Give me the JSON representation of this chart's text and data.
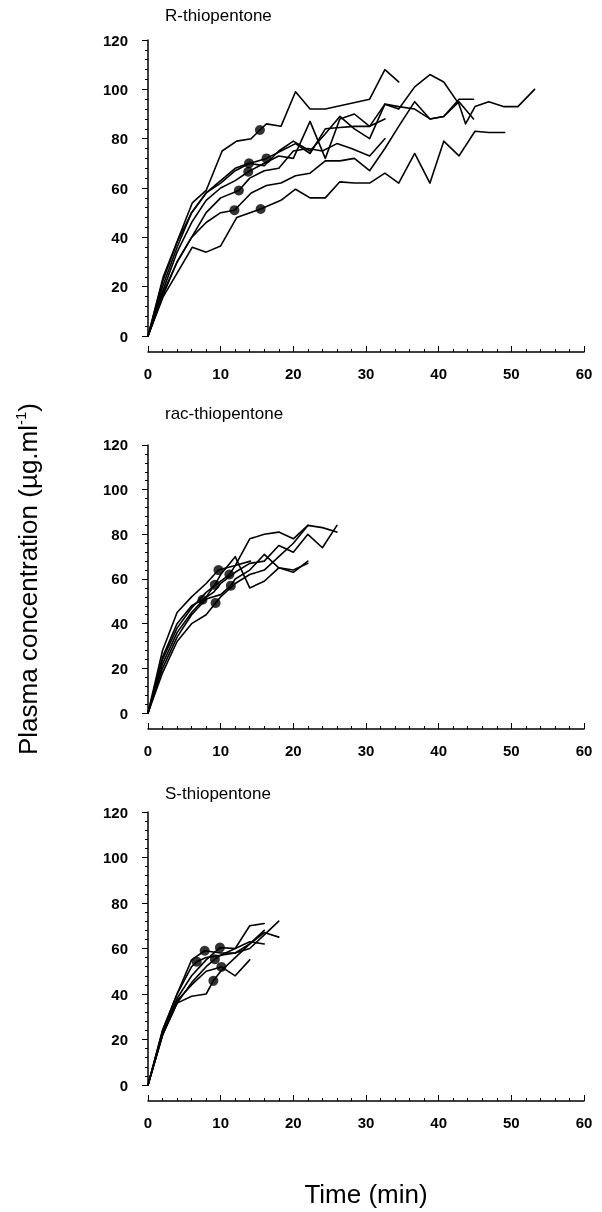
{
  "chart_data": [
    {
      "type": "line",
      "title": "R-thiopentone",
      "marker": "none",
      "xlim": [
        0,
        60
      ],
      "xticks": [
        0,
        10,
        20,
        30,
        40,
        50,
        60
      ],
      "ylim": [
        0,
        120
      ],
      "yticks": [
        0,
        20,
        40,
        60,
        80,
        100,
        120
      ],
      "series": [
        {
          "color": "#000000",
          "x": [
            0,
            2.1,
            6.1,
            8,
            10.2,
            12.2,
            14.2,
            15.4,
            16.3,
            18.3,
            20.3,
            22.3,
            24.4,
            30.5,
            32.6,
            34.5
          ],
          "values": [
            0,
            24,
            54,
            59,
            75,
            79,
            80,
            83.5,
            86,
            85,
            99,
            92,
            92,
            96,
            108,
            103
          ]
        },
        {
          "color": "#000000",
          "x": [
            0,
            2,
            4,
            6,
            8,
            10,
            12,
            13.9,
            16,
            18,
            20,
            22.3,
            24.4,
            26.4,
            28.4,
            30.5,
            32.6,
            34.5,
            36.7,
            38.8,
            40.7,
            42.8,
            43.7,
            45,
            46.9,
            48.9,
            50.9,
            53.2
          ],
          "values": [
            0,
            22,
            38,
            50,
            58,
            63,
            68,
            70,
            69,
            75,
            79,
            75,
            82,
            89,
            84,
            80,
            94,
            92,
            101,
            106,
            103,
            94,
            86,
            93,
            95,
            93,
            93,
            100
          ]
        },
        {
          "color": "#000000",
          "x": [
            0,
            2,
            4,
            6,
            8,
            10,
            12,
            13.8,
            16,
            18,
            20,
            22.3,
            24.4,
            26.4,
            28.4,
            30.5,
            32.6,
            34.5,
            36.7,
            38.8,
            40.7,
            42.8,
            44.8
          ],
          "values": [
            0,
            18,
            34,
            46,
            55,
            60,
            63,
            66.6,
            70,
            73,
            72,
            87,
            72,
            88,
            90,
            85,
            94,
            93,
            92,
            88,
            89,
            95,
            88
          ]
        },
        {
          "color": "#000000",
          "x": [
            0,
            2,
            4,
            6,
            8,
            10,
            12,
            14,
            16.3,
            18.3,
            20.3,
            22.3,
            24.4,
            26.4,
            28.4,
            30.5,
            32.6
          ],
          "values": [
            0,
            20,
            36,
            50,
            58,
            62,
            67,
            70,
            72,
            75,
            78,
            74,
            84,
            84.5,
            85,
            85,
            88
          ]
        },
        {
          "color": "#000000",
          "x": [
            0,
            2,
            4,
            6,
            8,
            10,
            12.5,
            14,
            16,
            18,
            20,
            22,
            24,
            26,
            28,
            30.5,
            32.6
          ],
          "values": [
            0,
            17,
            30,
            40,
            50,
            56,
            59,
            64,
            67,
            68,
            75,
            76,
            75,
            78,
            76,
            73,
            80
          ]
        },
        {
          "color": "#000000",
          "x": [
            0,
            2,
            4,
            6,
            8,
            10,
            11.9,
            14.2,
            16.3,
            18.3,
            20.3,
            22.3,
            24.4,
            26.4,
            28.4,
            30.5,
            32.6,
            34.5,
            36.7,
            38.8,
            40.7,
            42.8,
            44.8
          ],
          "values": [
            0,
            16,
            30,
            40,
            46,
            50,
            51,
            58,
            61,
            62,
            65,
            66,
            71,
            71,
            72,
            67,
            76,
            85,
            95,
            88,
            89,
            96,
            96
          ]
        },
        {
          "color": "#000000",
          "x": [
            0,
            2.1,
            6.1,
            8,
            10,
            12.2,
            15.5,
            18.3,
            20.3,
            22.3,
            24.4,
            26.4,
            28.4,
            30.5,
            32.6,
            34.5,
            36.7,
            38.8,
            40.7,
            42.8,
            45,
            46.9,
            49.1
          ],
          "values": [
            0,
            16,
            36,
            34,
            36.5,
            48,
            51.5,
            55,
            59.5,
            56,
            56,
            62.5,
            62,
            62,
            66,
            62,
            74,
            62,
            79,
            73,
            83,
            82.5,
            82.5
          ]
        },
        {
          "type": "scatter",
          "marker": "circle",
          "color": "#000000",
          "x": [
            15.4,
            13.9,
            13.8,
            16.3,
            12.5,
            11.9,
            15.5
          ],
          "values": [
            83.5,
            70,
            66.6,
            72,
            59,
            51,
            51.5
          ]
        }
      ]
    },
    {
      "type": "line",
      "title": "rac-thiopentone",
      "ylabel": "Plasma concentration (µg.ml$^{-1}$)",
      "marker": "none",
      "xlim": [
        0,
        60
      ],
      "xticks": [
        0,
        10,
        20,
        30,
        40,
        50,
        60
      ],
      "ylim": [
        0,
        120
      ],
      "yticks": [
        0,
        20,
        40,
        60,
        80,
        100,
        120
      ],
      "series": [
        {
          "color": "#000000",
          "x": [
            0,
            2,
            4,
            6,
            8,
            9.7,
            12,
            14.1
          ],
          "values": [
            0,
            28,
            45,
            52,
            58,
            64,
            66,
            68
          ]
        },
        {
          "color": "#000000",
          "x": [
            0,
            2,
            4,
            6,
            8,
            10,
            11.2,
            12,
            14,
            16,
            18,
            20,
            22
          ],
          "values": [
            0,
            24,
            38,
            47,
            54,
            59,
            62,
            66,
            78,
            80,
            81,
            78,
            84
          ]
        },
        {
          "color": "#000000",
          "x": [
            0,
            2,
            4,
            6,
            8,
            9.2,
            10,
            12,
            14,
            16,
            18,
            20,
            22
          ],
          "values": [
            0,
            22,
            36,
            45,
            52,
            57.4,
            62,
            70,
            56,
            59,
            65,
            63,
            68
          ]
        },
        {
          "color": "#000000",
          "x": [
            0,
            2,
            4,
            6,
            8,
            10,
            11.4,
            12,
            14,
            16,
            18,
            20,
            22
          ],
          "values": [
            0,
            20,
            34,
            44,
            51,
            53,
            57,
            60,
            64,
            71,
            65,
            64,
            67
          ]
        },
        {
          "color": "#000000",
          "x": [
            0,
            2,
            4,
            6,
            7.5,
            9,
            10,
            12,
            14,
            16,
            18,
            20,
            22,
            24,
            26
          ],
          "values": [
            0,
            25,
            40,
            48,
            50.7,
            54,
            58,
            63,
            67,
            68,
            75,
            72,
            80,
            74,
            84
          ]
        },
        {
          "color": "#000000",
          "x": [
            0,
            2,
            4,
            6,
            8,
            9.3,
            10,
            12,
            14,
            16,
            18,
            20,
            22,
            24,
            26
          ],
          "values": [
            0,
            18,
            32,
            40,
            44,
            49.3,
            52,
            58,
            62,
            64,
            70,
            76,
            84,
            83,
            81
          ]
        },
        {
          "type": "scatter",
          "marker": "circle",
          "color": "#000000",
          "x": [
            9.7,
            11.2,
            9.2,
            11.4,
            7.5,
            9.3
          ],
          "values": [
            64,
            62,
            57.4,
            57,
            50.7,
            49.3
          ]
        }
      ]
    },
    {
      "type": "line",
      "title": "S-thiopentone",
      "xlabel": "Time (min)",
      "marker": "none",
      "xlim": [
        0,
        60
      ],
      "xticks": [
        0,
        10,
        20,
        30,
        40,
        50,
        60
      ],
      "ylim": [
        0,
        120
      ],
      "yticks": [
        0,
        20,
        40,
        60,
        80,
        100,
        120
      ],
      "series": [
        {
          "color": "#000000",
          "x": [
            0,
            2,
            4,
            6,
            7.8,
            10,
            12,
            14,
            16,
            18
          ],
          "values": [
            0,
            24,
            40,
            55,
            59,
            58,
            58,
            60,
            66,
            72
          ]
        },
        {
          "color": "#000000",
          "x": [
            0,
            2,
            4,
            6,
            8,
            9.9,
            12,
            14,
            16
          ],
          "values": [
            0,
            23,
            38,
            48,
            55,
            60.4,
            60,
            70,
            71
          ]
        },
        {
          "color": "#000000",
          "x": [
            0,
            2,
            4,
            6,
            6.7,
            8,
            10,
            12,
            14,
            16,
            18
          ],
          "values": [
            0,
            24,
            40,
            52,
            54.2,
            56,
            57,
            58,
            62,
            67,
            65
          ]
        },
        {
          "color": "#000000",
          "x": [
            0,
            2,
            4,
            6,
            8,
            9.2,
            10,
            12,
            14,
            16
          ],
          "values": [
            0,
            22,
            36,
            45,
            52,
            55.3,
            57,
            60,
            63,
            62
          ]
        },
        {
          "color": "#000000",
          "x": [
            0,
            2,
            4,
            6,
            8,
            10.1,
            12,
            14
          ],
          "values": [
            0,
            22,
            37,
            44,
            50,
            51.9,
            48,
            55
          ]
        },
        {
          "color": "#000000",
          "x": [
            0,
            2,
            4,
            6,
            8,
            9,
            10,
            12,
            14,
            16
          ],
          "values": [
            0,
            22,
            36,
            39,
            40,
            45.8,
            50,
            56,
            62,
            68
          ]
        },
        {
          "type": "scatter",
          "marker": "circle",
          "color": "#000000",
          "x": [
            7.8,
            9.9,
            6.7,
            9.2,
            10.1,
            9
          ],
          "values": [
            59,
            60.4,
            54.2,
            55.3,
            51.9,
            45.8
          ]
        }
      ]
    }
  ]
}
